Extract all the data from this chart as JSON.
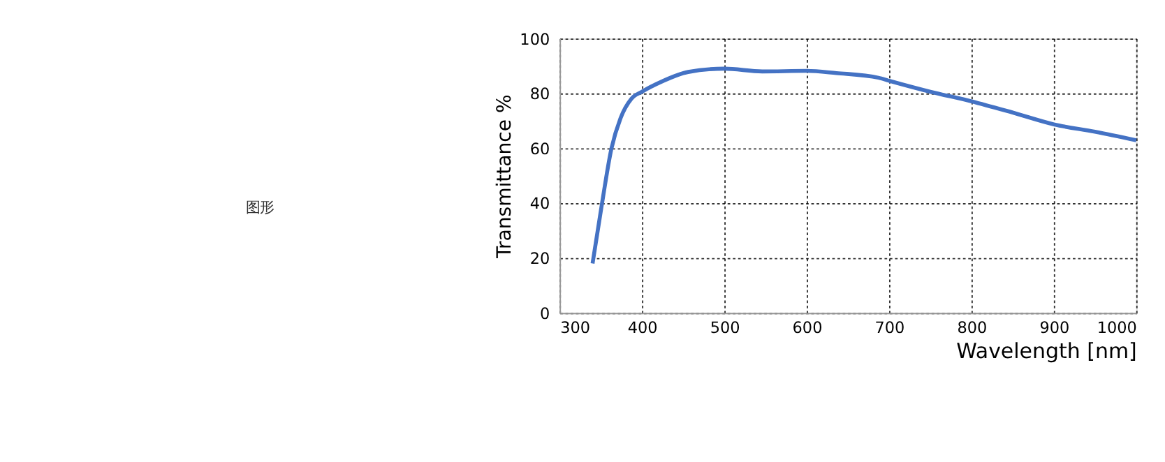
{
  "chart_data": {
    "type": "line",
    "xlabel": "Wavelength [nm]",
    "ylabel": "Transmittance %",
    "annotations": [
      "图形"
    ],
    "series": [
      {
        "color": "#4472c4",
        "x": [
          340,
          351,
          363,
          374,
          387,
          400,
          424,
          456,
          500,
          546,
          600,
          636,
          687,
          700,
          750,
          800,
          850,
          900,
          950,
          1000
        ],
        "values": [
          18,
          39,
          60,
          71,
          78,
          80.6,
          84.3,
          87.8,
          89,
          88,
          88.2,
          87.4,
          85.7,
          84.6,
          80.6,
          77.1,
          73,
          68.7,
          66,
          62.9
        ]
      }
    ],
    "xlim": [
      300,
      1000
    ],
    "xticks": [
      300,
      400,
      500,
      600,
      700,
      800,
      900,
      1000
    ],
    "ylim": [
      0,
      100
    ],
    "yticks": [
      0,
      20,
      40,
      60,
      80,
      100
    ],
    "grid": true,
    "legend": false,
    "marker": "none",
    "line_style": "solid"
  }
}
